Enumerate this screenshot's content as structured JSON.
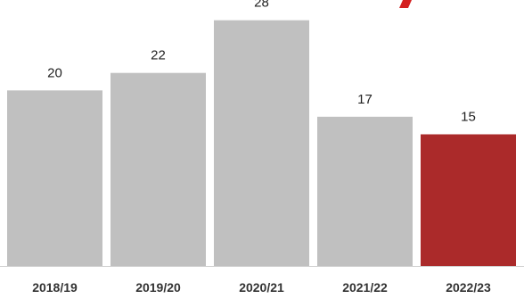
{
  "chart_data": {
    "type": "bar",
    "title": "",
    "xlabel": "",
    "ylabel": "",
    "categories": [
      "2018/19",
      "2019/20",
      "2020/21",
      "2021/22",
      "2022/23"
    ],
    "values": [
      20,
      22,
      28,
      17,
      15
    ],
    "ylim": [
      0,
      30
    ],
    "grid": false,
    "legend": "none",
    "colors": {
      "default_bar": "#c0c0c0",
      "highlight_bar": "#ab2a2a",
      "accent_mark": "#d42020",
      "axis": "#d0d0d0"
    },
    "highlight_index": 4
  }
}
